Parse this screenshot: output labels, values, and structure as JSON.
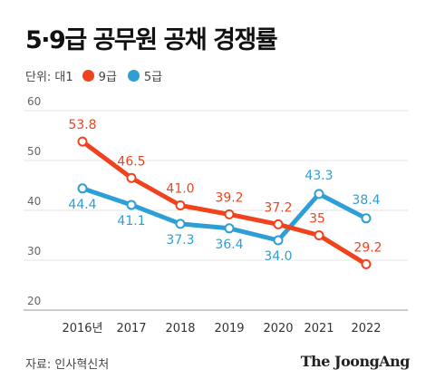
{
  "title": "5·9급 공무원 공채 경쟁률",
  "legend": {
    "unit": "단위: 대1",
    "items": [
      {
        "label": "9급",
        "color": "#f0421c"
      },
      {
        "label": "5급",
        "color": "#2e9fd6"
      }
    ]
  },
  "source": "자료: 인사혁신처",
  "brand": "The JoongAng",
  "chart_data": {
    "type": "line",
    "categories": [
      "2016년",
      "2017",
      "2018",
      "2019",
      "2020",
      "2021",
      "2022"
    ],
    "ylim": [
      20,
      60
    ],
    "yticks": [
      20,
      30,
      40,
      50,
      60
    ],
    "grid": true,
    "series": [
      {
        "name": "9급",
        "color": "#f0421c",
        "values": [
          53.8,
          46.5,
          41.0,
          39.2,
          37.2,
          35,
          29.2
        ],
        "labels": [
          "53.8",
          "46.5",
          "41.0",
          "39.2",
          "37.2",
          "35",
          "29.2"
        ]
      },
      {
        "name": "5급",
        "color": "#2e9fd6",
        "values": [
          44.4,
          41.1,
          37.3,
          36.4,
          34.0,
          43.3,
          38.4
        ],
        "labels": [
          "44.4",
          "41.1",
          "37.3",
          "36.4",
          "34.0",
          "43.3",
          "38.4"
        ]
      }
    ]
  }
}
